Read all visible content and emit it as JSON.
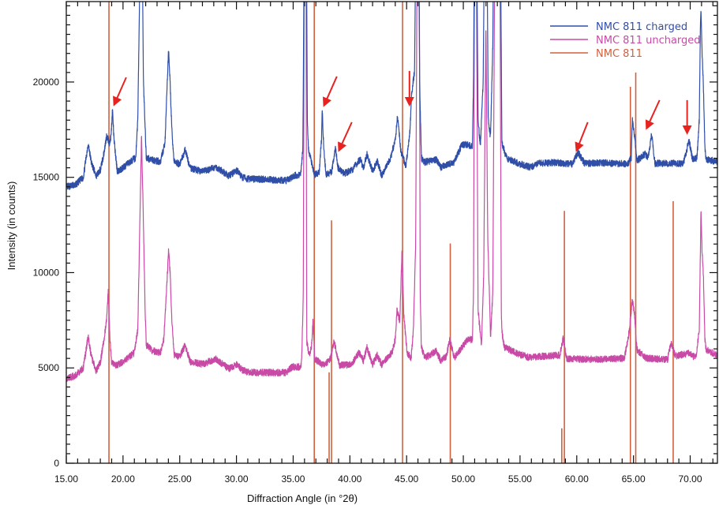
{
  "chart_data": {
    "type": "line",
    "title": "",
    "xlabel": "Diffraction Angle (in °2θ)",
    "ylabel": "Intensity (in counts)",
    "xlim": [
      15,
      72.4
    ],
    "ylim": [
      0,
      24220
    ],
    "x_ticks": [
      15,
      20,
      25,
      30,
      35,
      40,
      45,
      50,
      55,
      60,
      65,
      70
    ],
    "x_tick_labels": [
      "15.00",
      "20.00",
      "25.00",
      "30.00",
      "35.00",
      "40.00",
      "45.00",
      "50.00",
      "55.00",
      "60.00",
      "65.00",
      "70.00"
    ],
    "x_minor_step": 1,
    "y_ticks": [
      0,
      5000,
      10000,
      15000,
      20000
    ],
    "y_tick_labels": [
      "0",
      "5000",
      "10000",
      "15000",
      "20000"
    ],
    "y_minor_step": 500,
    "grid": false,
    "legend_position": "top-right",
    "series": [
      {
        "name": "NMC 811 charged",
        "color": "#2f4ea8",
        "points": [
          [
            15.0,
            14500
          ],
          [
            15.8,
            14600
          ],
          [
            16.5,
            15000
          ],
          [
            16.93,
            16770
          ],
          [
            17.2,
            15800
          ],
          [
            17.63,
            15070
          ],
          [
            18.0,
            15400
          ],
          [
            18.3,
            16200
          ],
          [
            18.56,
            17190
          ],
          [
            18.8,
            16770
          ],
          [
            18.95,
            17200
          ],
          [
            19.07,
            18590
          ],
          [
            19.2,
            17000
          ],
          [
            19.49,
            15320
          ],
          [
            20.0,
            15500
          ],
          [
            20.8,
            15900
          ],
          [
            21.12,
            16020
          ],
          [
            21.3,
            18000
          ],
          [
            21.45,
            24000
          ],
          [
            21.54,
            30000
          ],
          [
            21.65,
            30000
          ],
          [
            21.8,
            20000
          ],
          [
            22.05,
            16020
          ],
          [
            22.6,
            15900
          ],
          [
            23.3,
            15820
          ],
          [
            23.7,
            16800
          ],
          [
            23.9,
            20000
          ],
          [
            24.02,
            21740
          ],
          [
            24.15,
            20000
          ],
          [
            24.3,
            17500
          ],
          [
            24.5,
            15820
          ],
          [
            25.0,
            15700
          ],
          [
            25.49,
            16440
          ],
          [
            25.9,
            15490
          ],
          [
            27.0,
            15300
          ],
          [
            28.21,
            15530
          ],
          [
            28.8,
            15300
          ],
          [
            29.3,
            15070
          ],
          [
            30.07,
            15360
          ],
          [
            30.5,
            15000
          ],
          [
            31.1,
            14910
          ],
          [
            32.5,
            14900
          ],
          [
            34.4,
            14830
          ],
          [
            35.2,
            15100
          ],
          [
            35.66,
            15110
          ],
          [
            35.85,
            16500
          ],
          [
            35.89,
            19460
          ],
          [
            36.0,
            30000
          ],
          [
            36.15,
            30000
          ],
          [
            36.25,
            18000
          ],
          [
            36.35,
            16440
          ],
          [
            36.9,
            15110
          ],
          [
            37.3,
            15300
          ],
          [
            37.5,
            17000
          ],
          [
            37.56,
            18510
          ],
          [
            37.7,
            16500
          ],
          [
            37.9,
            15110
          ],
          [
            38.4,
            15300
          ],
          [
            38.73,
            16520
          ],
          [
            38.95,
            15500
          ],
          [
            39.5,
            15200
          ],
          [
            40.2,
            15400
          ],
          [
            40.9,
            15940
          ],
          [
            41.2,
            15500
          ],
          [
            41.5,
            16230
          ],
          [
            42.0,
            15300
          ],
          [
            42.4,
            15860
          ],
          [
            42.8,
            15080
          ],
          [
            43.6,
            16020
          ],
          [
            44.0,
            17000
          ],
          [
            44.2,
            18220
          ],
          [
            44.5,
            16310
          ],
          [
            44.95,
            15610
          ],
          [
            45.3,
            17500
          ],
          [
            45.45,
            19460
          ],
          [
            45.7,
            20560
          ],
          [
            45.85,
            30000
          ],
          [
            46.05,
            30000
          ],
          [
            46.15,
            20000
          ],
          [
            46.3,
            16020
          ],
          [
            46.6,
            15800
          ],
          [
            47.6,
            15940
          ],
          [
            48.0,
            15530
          ],
          [
            49.2,
            15800
          ],
          [
            49.9,
            16730
          ],
          [
            50.8,
            16650
          ],
          [
            50.9,
            20000
          ],
          [
            51.0,
            30000
          ],
          [
            51.15,
            30000
          ],
          [
            51.3,
            18000
          ],
          [
            51.5,
            16650
          ],
          [
            51.75,
            20000
          ],
          [
            51.9,
            30000
          ],
          [
            52.05,
            30000
          ],
          [
            52.2,
            18000
          ],
          [
            52.4,
            17100
          ],
          [
            52.6,
            22000
          ],
          [
            52.7,
            30000
          ],
          [
            53.25,
            30000
          ],
          [
            53.4,
            16800
          ],
          [
            53.8,
            16020
          ],
          [
            55.0,
            15700
          ],
          [
            55.9,
            15530
          ],
          [
            56.6,
            15730
          ],
          [
            58.0,
            15780
          ],
          [
            59.6,
            15700
          ],
          [
            60.1,
            16310
          ],
          [
            60.7,
            15730
          ],
          [
            62.5,
            15750
          ],
          [
            64.5,
            15700
          ],
          [
            64.8,
            16000
          ],
          [
            64.9,
            18010
          ],
          [
            65.1,
            17140
          ],
          [
            65.3,
            15860
          ],
          [
            66.0,
            16230
          ],
          [
            66.3,
            16000
          ],
          [
            66.6,
            17270
          ],
          [
            66.9,
            15730
          ],
          [
            69.4,
            15730
          ],
          [
            69.9,
            16930
          ],
          [
            70.2,
            15940
          ],
          [
            70.6,
            16020
          ],
          [
            70.8,
            18000
          ],
          [
            70.9,
            23000
          ],
          [
            70.95,
            23800
          ],
          [
            71.05,
            21500
          ],
          [
            71.16,
            19830
          ],
          [
            71.3,
            16500
          ],
          [
            71.4,
            15940
          ],
          [
            72.6,
            15800
          ]
        ]
      },
      {
        "name": "NMC 811 uncharged",
        "color": "#c84aa6",
        "points": [
          [
            15.0,
            4430
          ],
          [
            15.8,
            4600
          ],
          [
            16.5,
            5000
          ],
          [
            16.93,
            6670
          ],
          [
            17.2,
            5600
          ],
          [
            17.63,
            4840
          ],
          [
            18.0,
            5300
          ],
          [
            18.3,
            6400
          ],
          [
            18.56,
            7620
          ],
          [
            18.7,
            8990
          ],
          [
            18.85,
            6500
          ],
          [
            19.0,
            5260
          ],
          [
            19.4,
            5130
          ],
          [
            20.2,
            5400
          ],
          [
            21.0,
            5800
          ],
          [
            21.3,
            7000
          ],
          [
            21.4,
            9940
          ],
          [
            21.63,
            17180
          ],
          [
            21.8,
            12590
          ],
          [
            21.95,
            8000
          ],
          [
            22.05,
            6210
          ],
          [
            22.6,
            5900
          ],
          [
            23.3,
            5800
          ],
          [
            23.6,
            6500
          ],
          [
            23.8,
            8700
          ],
          [
            24.02,
            11180
          ],
          [
            24.15,
            10000
          ],
          [
            24.3,
            7620
          ],
          [
            24.5,
            5670
          ],
          [
            25.0,
            5600
          ],
          [
            25.49,
            6210
          ],
          [
            25.9,
            5340
          ],
          [
            27.0,
            5200
          ],
          [
            28.2,
            5470
          ],
          [
            28.8,
            5200
          ],
          [
            29.3,
            4970
          ],
          [
            30.07,
            5180
          ],
          [
            30.5,
            4900
          ],
          [
            31.1,
            4760
          ],
          [
            34.4,
            4760
          ],
          [
            34.9,
            5050
          ],
          [
            35.66,
            5050
          ],
          [
            35.75,
            5380
          ],
          [
            35.89,
            8780
          ],
          [
            36.0,
            30000
          ],
          [
            36.12,
            30000
          ],
          [
            36.2,
            6380
          ],
          [
            36.4,
            5670
          ],
          [
            36.6,
            6000
          ],
          [
            36.75,
            7450
          ],
          [
            36.9,
            5470
          ],
          [
            37.7,
            5130
          ],
          [
            38.3,
            5500
          ],
          [
            38.6,
            6380
          ],
          [
            39.1,
            5130
          ],
          [
            40.1,
            5170
          ],
          [
            40.8,
            5800
          ],
          [
            41.2,
            5380
          ],
          [
            41.5,
            6090
          ],
          [
            42.0,
            5180
          ],
          [
            42.4,
            5670
          ],
          [
            42.8,
            5170
          ],
          [
            43.7,
            5800
          ],
          [
            44.0,
            6500
          ],
          [
            44.15,
            8030
          ],
          [
            44.4,
            7450
          ],
          [
            44.6,
            11260
          ],
          [
            44.75,
            7780
          ],
          [
            45.05,
            5800
          ],
          [
            45.4,
            5530
          ],
          [
            45.6,
            7000
          ],
          [
            45.8,
            11600
          ],
          [
            45.95,
            30000
          ],
          [
            46.1,
            30000
          ],
          [
            46.2,
            9000
          ],
          [
            46.3,
            6090
          ],
          [
            46.6,
            5530
          ],
          [
            47.6,
            5890
          ],
          [
            48.0,
            5380
          ],
          [
            48.5,
            5600
          ],
          [
            48.8,
            6500
          ],
          [
            49.2,
            5530
          ],
          [
            50.4,
            6500
          ],
          [
            50.8,
            6500
          ],
          [
            50.9,
            9000
          ],
          [
            51.0,
            30000
          ],
          [
            51.12,
            30000
          ],
          [
            51.3,
            8000
          ],
          [
            51.6,
            6220
          ],
          [
            51.8,
            10000
          ],
          [
            51.99,
            23100
          ],
          [
            52.15,
            12000
          ],
          [
            52.4,
            6640
          ],
          [
            52.6,
            9000
          ],
          [
            52.8,
            30000
          ],
          [
            53.2,
            30000
          ],
          [
            53.35,
            8000
          ],
          [
            53.4,
            6910
          ],
          [
            53.6,
            6090
          ],
          [
            55.0,
            5700
          ],
          [
            55.9,
            5530
          ],
          [
            56.6,
            5590
          ],
          [
            58.5,
            5670
          ],
          [
            58.8,
            6580
          ],
          [
            59.1,
            5470
          ],
          [
            62.0,
            5450
          ],
          [
            64.2,
            5510
          ],
          [
            64.6,
            6830
          ],
          [
            64.9,
            8570
          ],
          [
            65.1,
            7740
          ],
          [
            65.3,
            5960
          ],
          [
            66.1,
            5510
          ],
          [
            68.0,
            5430
          ],
          [
            68.3,
            6290
          ],
          [
            68.7,
            5630
          ],
          [
            69.9,
            5760
          ],
          [
            70.5,
            5510
          ],
          [
            70.8,
            7040
          ],
          [
            70.95,
            13250
          ],
          [
            71.05,
            11000
          ],
          [
            71.16,
            9940
          ],
          [
            71.3,
            6500
          ],
          [
            71.4,
            5960
          ],
          [
            72.6,
            5590
          ]
        ]
      },
      {
        "name": "NMC 811",
        "color": "#d0613e",
        "type": "stick",
        "sticks": [
          [
            18.76,
            30000
          ],
          [
            36.86,
            30000
          ],
          [
            38.17,
            4770
          ],
          [
            38.38,
            12740
          ],
          [
            44.64,
            30000
          ],
          [
            48.85,
            11530
          ],
          [
            58.68,
            1830
          ],
          [
            58.91,
            13240
          ],
          [
            64.73,
            19750
          ],
          [
            65.2,
            20500
          ],
          [
            68.5,
            13750
          ]
        ]
      }
    ],
    "annotations": {
      "type": "arrow",
      "color": "#e8231f",
      "arrows": [
        {
          "from": [
            20.28,
            20240
          ],
          "to": [
            19.24,
            18840
          ]
        },
        {
          "from": [
            38.85,
            20290
          ],
          "to": [
            37.74,
            18800
          ]
        },
        {
          "from": [
            40.17,
            17890
          ],
          "to": [
            39.06,
            16440
          ]
        },
        {
          "from": [
            45.25,
            20580
          ],
          "to": [
            45.25,
            18840
          ]
        },
        {
          "from": [
            60.97,
            17890
          ],
          "to": [
            60.0,
            16440
          ]
        },
        {
          "from": [
            67.3,
            19050
          ],
          "to": [
            66.18,
            17600
          ]
        },
        {
          "from": [
            69.73,
            19050
          ],
          "to": [
            69.73,
            17350
          ]
        }
      ]
    }
  }
}
